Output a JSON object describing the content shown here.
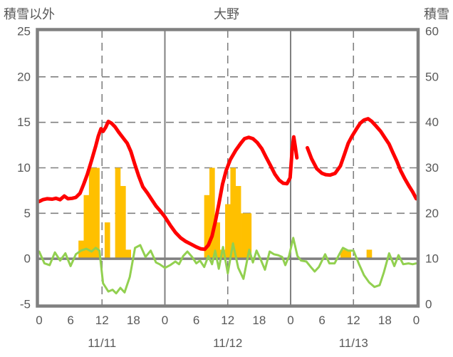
{
  "header": {
    "left_axis_title": "積雪以外",
    "chart_title": "大野",
    "right_axis_title": "積雪"
  },
  "chart_data": {
    "type": "line+bar",
    "title": "大野",
    "left_axis": {
      "title": "積雪以外",
      "min": -5,
      "max": 25,
      "tick_labels": [
        "25",
        "20",
        "15",
        "10",
        "5",
        "0",
        "-5"
      ],
      "tick_values": [
        25,
        20,
        15,
        10,
        5,
        0,
        -5
      ]
    },
    "right_axis": {
      "title": "積雪",
      "min": 0,
      "max": 60,
      "tick_labels": [
        "60",
        "50",
        "40",
        "30",
        "20",
        "10",
        "0"
      ],
      "tick_values": [
        60,
        50,
        40,
        30,
        20,
        10,
        0
      ]
    },
    "x_axis": {
      "unit": "hour",
      "total_hours": 72,
      "tick_hours": [
        0,
        6,
        12,
        18,
        24,
        30,
        36,
        42,
        48,
        54,
        60,
        66,
        72
      ],
      "tick_labels": [
        "0",
        "6",
        "12",
        "18",
        "0",
        "6",
        "12",
        "18",
        "0",
        "6",
        "12",
        "18",
        "0"
      ],
      "day_labels": [
        {
          "label": "11/11",
          "center_hour": 12
        },
        {
          "label": "11/12",
          "center_hour": 36
        },
        {
          "label": "11/13",
          "center_hour": 60
        }
      ],
      "solid_vline_hours": [
        24,
        48
      ],
      "dashed_vline_hours": [
        12,
        36,
        60
      ]
    },
    "series": {
      "snow_depth_line": {
        "name": "snow-depth-red-line",
        "axis": "right",
        "color": "#FF0000",
        "segments": [
          [
            [
              0,
              22.6
            ],
            [
              0.7,
              23.0
            ],
            [
              1.5,
              23.2
            ],
            [
              2.5,
              23.1
            ],
            [
              3.2,
              23.3
            ],
            [
              4,
              23.0
            ],
            [
              4.8,
              23.8
            ],
            [
              5.5,
              23.2
            ],
            [
              6.3,
              23.3
            ],
            [
              7,
              23.5
            ],
            [
              7.8,
              24.4
            ],
            [
              8.5,
              26.4
            ],
            [
              9.2,
              28.6
            ],
            [
              10,
              31.6
            ],
            [
              10.8,
              34.8
            ],
            [
              11.3,
              37.0
            ],
            [
              11.8,
              38.6
            ],
            [
              12.2,
              38.0
            ],
            [
              12.7,
              38.9
            ],
            [
              13.2,
              40.2
            ],
            [
              13.8,
              39.8
            ],
            [
              14.5,
              39.0
            ],
            [
              15.2,
              37.8
            ],
            [
              16,
              36.6
            ],
            [
              16.8,
              35.4
            ],
            [
              17.5,
              33.6
            ],
            [
              18.2,
              31.0
            ],
            [
              19,
              28.2
            ],
            [
              19.8,
              25.8
            ],
            [
              20.7,
              24.4
            ],
            [
              21.5,
              23.0
            ],
            [
              22.3,
              21.6
            ],
            [
              23.2,
              20.4
            ],
            [
              24,
              19.2
            ],
            [
              25,
              17.4
            ],
            [
              26,
              15.8
            ],
            [
              27,
              14.6
            ],
            [
              28,
              13.8
            ],
            [
              29,
              13.2
            ],
            [
              30,
              12.6
            ],
            [
              30.8,
              12.2
            ],
            [
              31.6,
              12.1
            ],
            [
              32.3,
              13.0
            ],
            [
              33,
              15.0
            ],
            [
              33.6,
              18.0
            ],
            [
              34.3,
              22.0
            ],
            [
              35,
              26.4
            ],
            [
              35.7,
              29.4
            ],
            [
              36.5,
              31.8
            ],
            [
              37.5,
              33.8
            ],
            [
              38.5,
              35.4
            ],
            [
              39.2,
              36.4
            ],
            [
              40,
              36.7
            ],
            [
              40.8,
              36.4
            ],
            [
              41.6,
              35.6
            ],
            [
              42.5,
              34.2
            ],
            [
              43.3,
              32.4
            ],
            [
              44.2,
              30.4
            ],
            [
              45,
              28.6
            ],
            [
              45.8,
              27.3
            ],
            [
              46.6,
              26.6
            ],
            [
              47.3,
              26.5
            ],
            [
              47.9,
              27.8
            ],
            [
              48.3,
              34.0
            ],
            [
              48.6,
              36.8
            ],
            [
              48.9,
              34.6
            ],
            [
              49.2,
              32.2
            ]
          ],
          [
            [
              51.2,
              34.4
            ],
            [
              52,
              32.0
            ],
            [
              53,
              29.8
            ],
            [
              54,
              28.8
            ],
            [
              54.7,
              28.5
            ],
            [
              55.5,
              28.4
            ],
            [
              56.5,
              28.8
            ],
            [
              57.5,
              30.4
            ],
            [
              58.3,
              33.0
            ],
            [
              59,
              35.4
            ],
            [
              59.7,
              36.9
            ],
            [
              60.5,
              38.4
            ],
            [
              61.3,
              39.8
            ],
            [
              62,
              40.5
            ],
            [
              62.8,
              40.8
            ],
            [
              63.5,
              40.2
            ],
            [
              64.3,
              39.2
            ],
            [
              65.2,
              38.0
            ],
            [
              66,
              36.6
            ],
            [
              66.8,
              35.2
            ],
            [
              67.5,
              33.4
            ],
            [
              68.3,
              31.4
            ],
            [
              69,
              29.4
            ],
            [
              69.8,
              27.6
            ],
            [
              70.6,
              26.0
            ],
            [
              71.3,
              24.7
            ],
            [
              72,
              23.2
            ]
          ]
        ]
      },
      "temperature_line": {
        "name": "temperature-green-line",
        "axis": "left",
        "color": "#92D050",
        "points": [
          [
            0,
            0.8
          ],
          [
            1,
            -0.5
          ],
          [
            2,
            -0.7
          ],
          [
            3,
            0.7
          ],
          [
            4,
            -0.2
          ],
          [
            5,
            0.6
          ],
          [
            6,
            -0.8
          ],
          [
            7,
            0.5
          ],
          [
            8,
            0.9
          ],
          [
            9,
            1.1
          ],
          [
            10,
            0.8
          ],
          [
            10.8,
            1.2
          ],
          [
            11.5,
            0.9
          ],
          [
            12.2,
            -2.7
          ],
          [
            13.2,
            -3.6
          ],
          [
            14,
            -3.4
          ],
          [
            14.7,
            -3.8
          ],
          [
            15.5,
            -3.2
          ],
          [
            16.3,
            -3.7
          ],
          [
            17.3,
            -2.0
          ],
          [
            18.3,
            1.2
          ],
          [
            19.3,
            1.5
          ],
          [
            20.3,
            0.2
          ],
          [
            21.3,
            0.9
          ],
          [
            22.3,
            -0.4
          ],
          [
            23,
            -0.6
          ],
          [
            24,
            -1.0
          ],
          [
            25,
            -0.7
          ],
          [
            26,
            -0.3
          ],
          [
            26.7,
            -0.6
          ],
          [
            27.5,
            0.3
          ],
          [
            28.3,
            0.8
          ],
          [
            29.2,
            0.2
          ],
          [
            30,
            -0.5
          ],
          [
            30.7,
            -0.2
          ],
          [
            31.5,
            -0.9
          ],
          [
            32.3,
            0.3
          ],
          [
            33,
            -0.6
          ],
          [
            33.6,
            0.9
          ],
          [
            34.3,
            -1.1
          ],
          [
            35.1,
            1.3
          ],
          [
            36,
            -1.6
          ],
          [
            37,
            1.7
          ],
          [
            38,
            -1.0
          ],
          [
            39,
            -2.2
          ],
          [
            40.1,
            1.0
          ],
          [
            40.8,
            -0.4
          ],
          [
            41.5,
            0.9
          ],
          [
            42.3,
            -0.1
          ],
          [
            43.1,
            -1.2
          ],
          [
            44,
            0.8
          ],
          [
            44.8,
            0.5
          ],
          [
            45.6,
            0.4
          ],
          [
            46.4,
            0.2
          ],
          [
            47,
            -0.7
          ],
          [
            47.7,
            0.3
          ],
          [
            48.5,
            2.3
          ],
          [
            49.3,
            0.3
          ],
          [
            50,
            -0.2
          ],
          [
            51,
            -0.3
          ],
          [
            52,
            -1.0
          ],
          [
            52.6,
            -1.4
          ],
          [
            53.4,
            -0.9
          ],
          [
            54.6,
            0.5
          ],
          [
            55.4,
            -0.5
          ],
          [
            56.4,
            -0.5
          ],
          [
            57.4,
            0.6
          ],
          [
            58,
            1.2
          ],
          [
            59,
            0.9
          ],
          [
            60,
            0.9
          ],
          [
            61,
            -0.5
          ],
          [
            62,
            -1.8
          ],
          [
            63,
            -2.6
          ],
          [
            64,
            -3.1
          ],
          [
            65,
            -2.9
          ],
          [
            65.8,
            -1.5
          ],
          [
            66.8,
            0.6
          ],
          [
            67.8,
            -0.8
          ],
          [
            68.6,
            0.4
          ],
          [
            69.5,
            -0.6
          ],
          [
            70.5,
            -0.5
          ],
          [
            71.3,
            -0.6
          ],
          [
            72,
            -0.5
          ]
        ]
      },
      "precipitation_bars": {
        "name": "precipitation-gold-bars",
        "axis": "left",
        "color": "#FFC000",
        "bars": [
          [
            8,
            2
          ],
          [
            9,
            7
          ],
          [
            10,
            10
          ],
          [
            11,
            10
          ],
          [
            13,
            4
          ],
          [
            15,
            10
          ],
          [
            16,
            8
          ],
          [
            17,
            1
          ],
          [
            32,
            7
          ],
          [
            33,
            10
          ],
          [
            34,
            4
          ],
          [
            35,
            1
          ],
          [
            36,
            6
          ],
          [
            37,
            10
          ],
          [
            38,
            8
          ],
          [
            39,
            5
          ],
          [
            40,
            5
          ],
          [
            58,
            1
          ],
          [
            59,
            1
          ],
          [
            63,
            1
          ]
        ]
      }
    },
    "style": {
      "grid_color": "#808080",
      "border_color": "#808080",
      "zero_line_color": "#808080",
      "text_color": "#595959",
      "background": "#FFFFFF",
      "grid_style": "dashed"
    }
  }
}
